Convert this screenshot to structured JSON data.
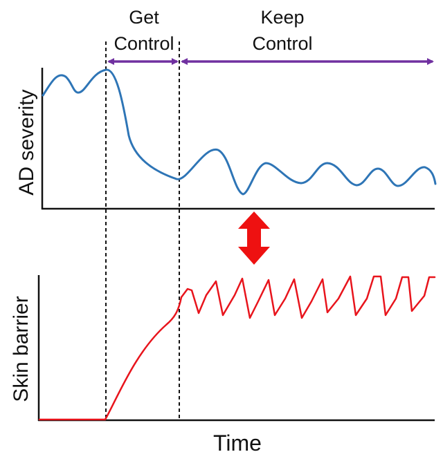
{
  "phases": {
    "get_control": {
      "line1": "Get",
      "line2": "Control"
    },
    "keep_control": {
      "line1": "Keep",
      "line2": "Control"
    }
  },
  "top_panel": {
    "ylabel": "AD severity"
  },
  "bottom_panel": {
    "ylabel": "Skin barrier"
  },
  "xlabel": "Time",
  "colors": {
    "severity_curve": "#2e75b6",
    "barrier_curve": "#e8141c",
    "phase_arrows": "#7030a0",
    "link_arrow": "#ee1111",
    "axes": "#111111",
    "dividers": "#111111"
  },
  "icons": {
    "phase_arrows": "double-headed-arrow-icon",
    "link_arrow": "vertical-double-arrow-icon"
  }
}
